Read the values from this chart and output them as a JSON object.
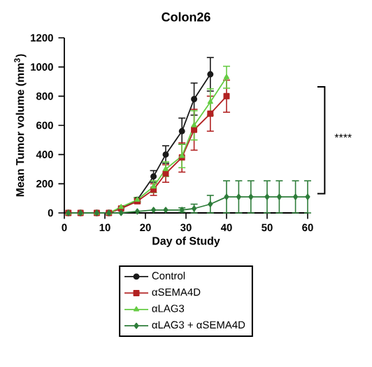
{
  "chart_data": {
    "type": "line",
    "title": "Colon26",
    "xlabel": "Day of Study",
    "ylabel": "Mean Tumor volume (mm$^{3}$)",
    "xlim": [
      0,
      60
    ],
    "ylim": [
      0,
      1200
    ],
    "xticks": [
      0,
      10,
      20,
      30,
      40,
      50,
      60
    ],
    "yticks": [
      0,
      200,
      400,
      600,
      800,
      1000,
      1200
    ],
    "grid": false,
    "legend": "bottom",
    "line_style": "solid",
    "annotations": [
      "****"
    ],
    "series": [
      {
        "name": "Control",
        "color": "#1a1a1a",
        "marker": "circle",
        "x": [
          1,
          4,
          8,
          11,
          14,
          18,
          22,
          25,
          29,
          32,
          36
        ],
        "values": [
          0,
          0,
          0,
          0,
          30,
          90,
          250,
          400,
          560,
          780,
          950
        ],
        "errors": [
          null,
          null,
          null,
          null,
          null,
          15,
          40,
          60,
          90,
          110,
          115
        ]
      },
      {
        "name": "αSEMA4D",
        "color": "#b22222",
        "marker": "square",
        "x": [
          1,
          4,
          8,
          11,
          14,
          18,
          22,
          25,
          29,
          32,
          36,
          40
        ],
        "values": [
          0,
          0,
          0,
          0,
          30,
          80,
          160,
          270,
          380,
          570,
          680,
          800
        ],
        "errors": [
          null,
          null,
          null,
          null,
          null,
          15,
          40,
          60,
          100,
          140,
          120,
          110
        ]
      },
      {
        "name": "αLAG3",
        "color": "#66cc44",
        "marker": "triangle",
        "x": [
          1,
          4,
          8,
          11,
          14,
          18,
          22,
          25,
          29,
          32,
          36,
          40
        ],
        "values": [
          0,
          0,
          0,
          0,
          40,
          90,
          180,
          300,
          390,
          600,
          760,
          930
        ],
        "errors": [
          null,
          null,
          null,
          null,
          null,
          15,
          40,
          50,
          80,
          100,
          90,
          75
        ]
      },
      {
        "name": "αLAG3 + αSEMA4D",
        "color": "#2e7d3a",
        "marker": "diamond",
        "x": [
          1,
          4,
          8,
          11,
          14,
          18,
          22,
          25,
          29,
          32,
          36,
          40,
          43,
          46,
          50,
          53,
          57,
          60
        ],
        "values": [
          0,
          0,
          0,
          0,
          0,
          10,
          20,
          20,
          20,
          30,
          60,
          110,
          110,
          110,
          110,
          110,
          110,
          110
        ],
        "errors": [
          null,
          null,
          null,
          null,
          null,
          null,
          null,
          null,
          15,
          30,
          60,
          110,
          110,
          110,
          110,
          110,
          110,
          110
        ]
      }
    ]
  }
}
